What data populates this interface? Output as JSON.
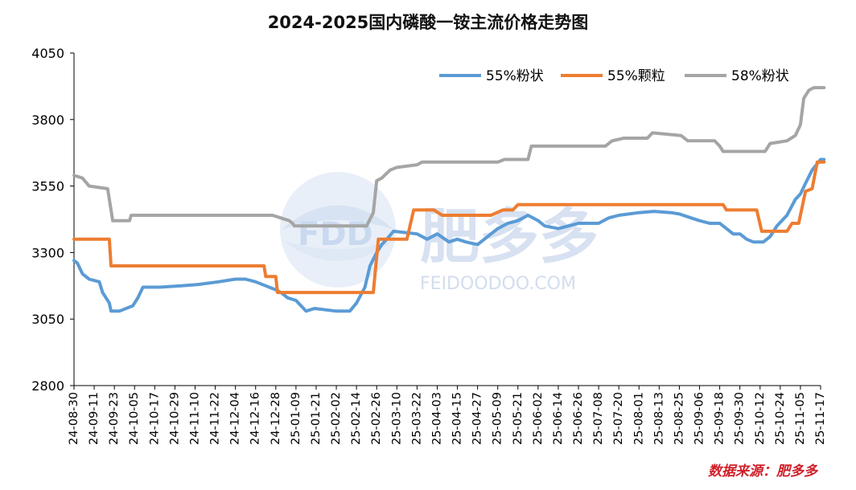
{
  "chart_data": {
    "type": "line",
    "title": "2024-2025国内磷酸一铵主流价格走势图",
    "source": "数据来源：肥多多",
    "watermark": {
      "brand": "FDD",
      "cn": "肥多多",
      "url": "FEIDOODOO.COM"
    },
    "xlabel": "",
    "ylabel": "",
    "ylim": [
      2800,
      4050
    ],
    "yticks": [
      2800,
      3050,
      3300,
      3550,
      3800,
      4050
    ],
    "grid": false,
    "legend_position": "top-right",
    "x_ticks": [
      "24-08-30",
      "24-09-11",
      "24-09-23",
      "24-10-05",
      "24-10-17",
      "24-10-29",
      "24-11-10",
      "24-11-22",
      "24-12-04",
      "24-12-16",
      "24-12-28",
      "25-01-09",
      "25-01-21",
      "25-02-02",
      "25-02-14",
      "25-02-26",
      "25-03-10",
      "25-03-22",
      "25-04-03",
      "25-04-15",
      "25-04-27",
      "25-05-09",
      "25-05-21",
      "25-06-02",
      "25-06-14",
      "25-06-26",
      "25-07-08",
      "25-07-20",
      "25-08-01",
      "25-08-13",
      "25-08-25",
      "25-09-06",
      "25-09-18",
      "25-09-30",
      "25-10-12",
      "25-10-24",
      "25-11-05",
      "25-11-17"
    ],
    "series": [
      {
        "name": "55%粉状",
        "color": "#5b9bd5",
        "points": [
          [
            "24-08-30",
            3270
          ],
          [
            "24-09-01",
            3260
          ],
          [
            "24-09-04",
            3220
          ],
          [
            "24-09-08",
            3200
          ],
          [
            "24-09-14",
            3190
          ],
          [
            "24-09-16",
            3150
          ],
          [
            "24-09-20",
            3110
          ],
          [
            "24-09-21",
            3080
          ],
          [
            "24-09-26",
            3080
          ],
          [
            "24-10-04",
            3100
          ],
          [
            "24-10-07",
            3130
          ],
          [
            "24-10-10",
            3170
          ],
          [
            "24-10-20",
            3170
          ],
          [
            "24-11-02",
            3175
          ],
          [
            "24-11-12",
            3180
          ],
          [
            "24-11-24",
            3190
          ],
          [
            "24-12-04",
            3200
          ],
          [
            "24-12-10",
            3200
          ],
          [
            "24-12-16",
            3190
          ],
          [
            "24-12-28",
            3160
          ],
          [
            "24-12-31",
            3150
          ],
          [
            "25-01-04",
            3130
          ],
          [
            "25-01-09",
            3120
          ],
          [
            "25-01-15",
            3080
          ],
          [
            "25-01-20",
            3090
          ],
          [
            "25-02-02",
            3080
          ],
          [
            "25-02-10",
            3080
          ],
          [
            "25-02-14",
            3110
          ],
          [
            "25-02-19",
            3170
          ],
          [
            "25-02-22",
            3250
          ],
          [
            "25-02-26",
            3300
          ],
          [
            "25-03-01",
            3330
          ],
          [
            "25-03-04",
            3350
          ],
          [
            "25-03-08",
            3380
          ],
          [
            "25-03-22",
            3370
          ],
          [
            "25-03-28",
            3350
          ],
          [
            "25-04-03",
            3370
          ],
          [
            "25-04-10",
            3340
          ],
          [
            "25-04-15",
            3350
          ],
          [
            "25-04-20",
            3340
          ],
          [
            "25-04-27",
            3330
          ],
          [
            "25-05-01",
            3350
          ],
          [
            "25-05-09",
            3390
          ],
          [
            "25-05-15",
            3410
          ],
          [
            "25-05-21",
            3420
          ],
          [
            "25-05-27",
            3440
          ],
          [
            "25-06-02",
            3420
          ],
          [
            "25-06-06",
            3400
          ],
          [
            "25-06-14",
            3390
          ],
          [
            "25-06-20",
            3400
          ],
          [
            "25-06-26",
            3410
          ],
          [
            "25-07-08",
            3410
          ],
          [
            "25-07-14",
            3430
          ],
          [
            "25-07-20",
            3440
          ],
          [
            "25-08-01",
            3450
          ],
          [
            "25-08-10",
            3455
          ],
          [
            "25-08-20",
            3450
          ],
          [
            "25-08-25",
            3445
          ],
          [
            "25-09-01",
            3430
          ],
          [
            "25-09-06",
            3420
          ],
          [
            "25-09-12",
            3410
          ],
          [
            "25-09-18",
            3410
          ],
          [
            "25-09-22",
            3390
          ],
          [
            "25-09-26",
            3370
          ],
          [
            "25-09-30",
            3370
          ],
          [
            "25-10-04",
            3350
          ],
          [
            "25-10-08",
            3340
          ],
          [
            "25-10-14",
            3340
          ],
          [
            "25-10-18",
            3360
          ],
          [
            "25-10-22",
            3400
          ],
          [
            "25-10-28",
            3440
          ],
          [
            "25-11-02",
            3500
          ],
          [
            "25-11-05",
            3520
          ],
          [
            "25-11-08",
            3560
          ],
          [
            "25-11-12",
            3610
          ],
          [
            "25-11-17",
            3650
          ],
          [
            "25-11-19",
            3650
          ]
        ]
      },
      {
        "name": "55%颗粒",
        "color": "#ed7d31",
        "points": [
          [
            "24-08-30",
            3350
          ],
          [
            "24-09-20",
            3350
          ],
          [
            "24-09-21",
            3250
          ],
          [
            "24-12-21",
            3250
          ],
          [
            "24-12-22",
            3210
          ],
          [
            "24-12-28",
            3210
          ],
          [
            "24-12-29",
            3150
          ],
          [
            "25-02-24",
            3150
          ],
          [
            "25-02-27",
            3350
          ],
          [
            "25-03-16",
            3350
          ],
          [
            "25-03-20",
            3460
          ],
          [
            "25-04-01",
            3460
          ],
          [
            "25-04-06",
            3440
          ],
          [
            "25-05-05",
            3440
          ],
          [
            "25-05-12",
            3460
          ],
          [
            "25-05-18",
            3460
          ],
          [
            "25-05-21",
            3480
          ],
          [
            "25-09-20",
            3480
          ],
          [
            "25-09-22",
            3460
          ],
          [
            "25-10-10",
            3460
          ],
          [
            "25-10-13",
            3380
          ],
          [
            "25-10-28",
            3380
          ],
          [
            "25-10-31",
            3410
          ],
          [
            "25-11-04",
            3410
          ],
          [
            "25-11-08",
            3530
          ],
          [
            "25-11-12",
            3540
          ],
          [
            "25-11-15",
            3640
          ],
          [
            "25-11-19",
            3640
          ]
        ]
      },
      {
        "name": "58%粉状",
        "color": "#a5a5a5",
        "points": [
          [
            "24-08-30",
            3590
          ],
          [
            "24-09-04",
            3580
          ],
          [
            "24-09-08",
            3550
          ],
          [
            "24-09-19",
            3540
          ],
          [
            "24-09-22",
            3420
          ],
          [
            "24-10-02",
            3420
          ],
          [
            "24-10-03",
            3440
          ],
          [
            "24-12-26",
            3440
          ],
          [
            "24-12-31",
            3430
          ],
          [
            "25-01-05",
            3420
          ],
          [
            "25-01-07",
            3410
          ],
          [
            "25-01-08",
            3400
          ],
          [
            "25-02-20",
            3400
          ],
          [
            "25-02-24",
            3450
          ],
          [
            "25-02-26",
            3570
          ],
          [
            "25-03-01",
            3580
          ],
          [
            "25-03-06",
            3610
          ],
          [
            "25-03-10",
            3620
          ],
          [
            "25-03-22",
            3630
          ],
          [
            "25-03-25",
            3640
          ],
          [
            "25-05-09",
            3640
          ],
          [
            "25-05-13",
            3650
          ],
          [
            "25-05-27",
            3650
          ],
          [
            "25-05-29",
            3700
          ],
          [
            "25-07-12",
            3700
          ],
          [
            "25-07-16",
            3720
          ],
          [
            "25-07-23",
            3730
          ],
          [
            "25-08-06",
            3730
          ],
          [
            "25-08-09",
            3750
          ],
          [
            "25-08-26",
            3740
          ],
          [
            "25-08-30",
            3720
          ],
          [
            "25-09-15",
            3720
          ],
          [
            "25-09-18",
            3700
          ],
          [
            "25-09-20",
            3680
          ],
          [
            "25-10-15",
            3680
          ],
          [
            "25-10-18",
            3710
          ],
          [
            "25-10-28",
            3720
          ],
          [
            "25-11-02",
            3740
          ],
          [
            "25-11-05",
            3780
          ],
          [
            "25-11-07",
            3880
          ],
          [
            "25-11-10",
            3910
          ],
          [
            "25-11-13",
            3920
          ],
          [
            "25-11-19",
            3920
          ]
        ]
      }
    ]
  }
}
